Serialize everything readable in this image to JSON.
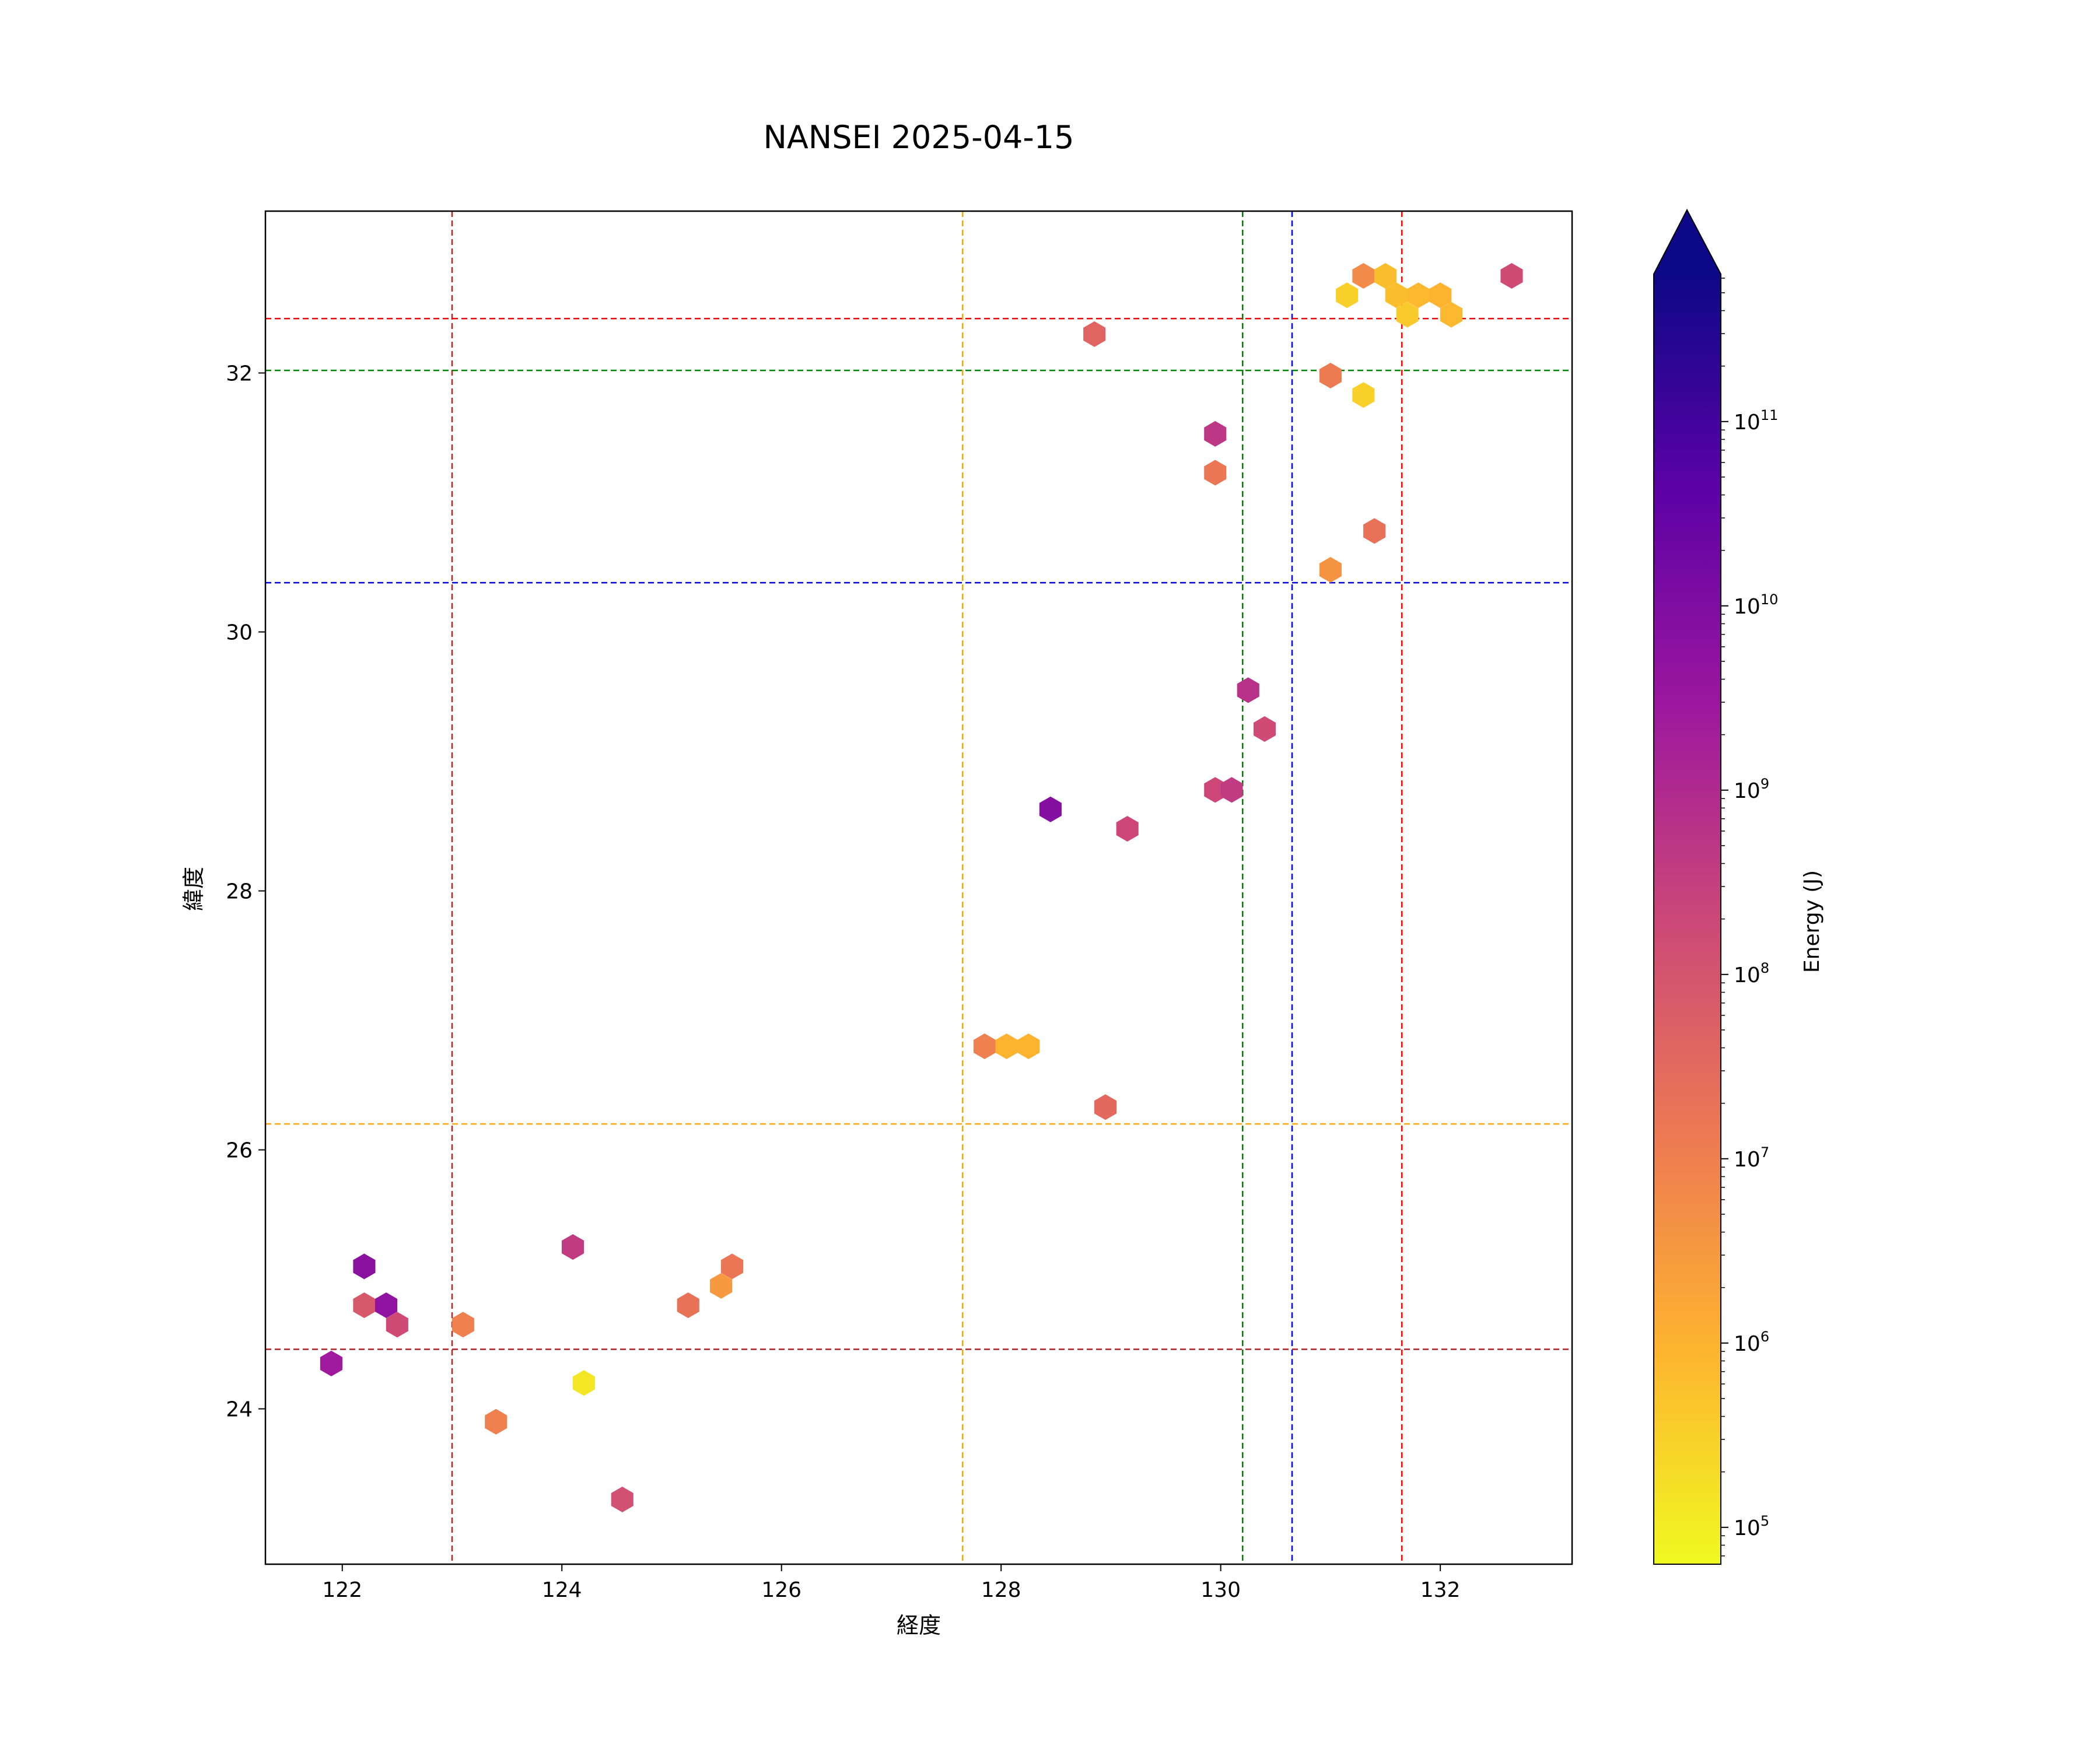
{
  "chart_data": {
    "type": "scatter",
    "marker": "hexagon",
    "title": "NANSEI 2025-04-15",
    "xlabel": "経度",
    "ylabel": "緯度",
    "xlim": [
      121.3,
      133.2
    ],
    "ylim": [
      22.8,
      33.25
    ],
    "xticks": [
      122,
      124,
      126,
      128,
      130,
      132
    ],
    "yticks": [
      24,
      26,
      28,
      30,
      32
    ],
    "grid": false,
    "colorbar": {
      "label": "Energy (J)",
      "scale": "log",
      "range_log10": [
        4.8,
        11.8
      ],
      "extend": "max",
      "colormap": "plasma_r",
      "stops": [
        "#f0f921",
        "#fdb42f",
        "#ed7953",
        "#cc4778",
        "#9c179e",
        "#5c01a6",
        "#0d0887"
      ],
      "ticks": [
        {
          "exp": 5,
          "label": "10",
          "sup": "5"
        },
        {
          "exp": 6,
          "label": "10",
          "sup": "6"
        },
        {
          "exp": 7,
          "label": "10",
          "sup": "7"
        },
        {
          "exp": 8,
          "label": "10",
          "sup": "8"
        },
        {
          "exp": 9,
          "label": "10",
          "sup": "9"
        },
        {
          "exp": 10,
          "label": "10",
          "sup": "10"
        },
        {
          "exp": 11,
          "label": "10",
          "sup": "11"
        }
      ]
    },
    "reference_lines": [
      {
        "orientation": "vertical",
        "value": 123.0,
        "color": "#b22222"
      },
      {
        "orientation": "vertical",
        "value": 127.65,
        "color": "#ffa500"
      },
      {
        "orientation": "vertical",
        "value": 130.2,
        "color": "#008000"
      },
      {
        "orientation": "vertical",
        "value": 130.65,
        "color": "#0000ff"
      },
      {
        "orientation": "vertical",
        "value": 131.65,
        "color": "#ff0000"
      },
      {
        "orientation": "horizontal",
        "value": 32.42,
        "color": "#ff0000"
      },
      {
        "orientation": "horizontal",
        "value": 32.02,
        "color": "#008000"
      },
      {
        "orientation": "horizontal",
        "value": 30.38,
        "color": "#0000ff"
      },
      {
        "orientation": "horizontal",
        "value": 26.2,
        "color": "#ffa500"
      },
      {
        "orientation": "horizontal",
        "value": 24.46,
        "color": "#b22222"
      }
    ],
    "points": [
      {
        "x": 121.9,
        "y": 24.35,
        "log_e": 9.4
      },
      {
        "x": 122.2,
        "y": 25.1,
        "log_e": 9.8
      },
      {
        "x": 122.2,
        "y": 24.8,
        "log_e": 7.9
      },
      {
        "x": 122.4,
        "y": 24.8,
        "log_e": 9.7
      },
      {
        "x": 122.5,
        "y": 24.65,
        "log_e": 8.2
      },
      {
        "x": 123.1,
        "y": 24.65,
        "log_e": 7.0
      },
      {
        "x": 123.4,
        "y": 23.9,
        "log_e": 7.0
      },
      {
        "x": 124.1,
        "y": 25.25,
        "log_e": 8.6
      },
      {
        "x": 124.2,
        "y": 24.2,
        "log_e": 5.1
      },
      {
        "x": 124.55,
        "y": 23.3,
        "log_e": 8.1
      },
      {
        "x": 125.15,
        "y": 24.8,
        "log_e": 7.3
      },
      {
        "x": 125.45,
        "y": 24.95,
        "log_e": 6.5
      },
      {
        "x": 125.55,
        "y": 25.1,
        "log_e": 7.2
      },
      {
        "x": 127.85,
        "y": 26.8,
        "log_e": 7.0
      },
      {
        "x": 128.05,
        "y": 26.8,
        "log_e": 6.0
      },
      {
        "x": 128.25,
        "y": 26.8,
        "log_e": 6.0
      },
      {
        "x": 128.45,
        "y": 28.63,
        "log_e": 9.9
      },
      {
        "x": 128.85,
        "y": 32.3,
        "log_e": 7.6
      },
      {
        "x": 128.95,
        "y": 26.33,
        "log_e": 7.5
      },
      {
        "x": 129.15,
        "y": 28.48,
        "log_e": 8.3
      },
      {
        "x": 129.95,
        "y": 31.53,
        "log_e": 8.7
      },
      {
        "x": 129.95,
        "y": 31.23,
        "log_e": 7.2
      },
      {
        "x": 129.95,
        "y": 28.78,
        "log_e": 8.3
      },
      {
        "x": 130.1,
        "y": 28.78,
        "log_e": 8.6
      },
      {
        "x": 130.25,
        "y": 29.55,
        "log_e": 8.8
      },
      {
        "x": 130.4,
        "y": 29.25,
        "log_e": 8.2
      },
      {
        "x": 131.0,
        "y": 31.98,
        "log_e": 7.1
      },
      {
        "x": 131.0,
        "y": 30.48,
        "log_e": 6.6
      },
      {
        "x": 131.15,
        "y": 32.6,
        "log_e": 5.5
      },
      {
        "x": 131.3,
        "y": 32.75,
        "log_e": 6.8
      },
      {
        "x": 131.3,
        "y": 31.83,
        "log_e": 5.5
      },
      {
        "x": 131.4,
        "y": 30.78,
        "log_e": 7.3
      },
      {
        "x": 131.5,
        "y": 32.75,
        "log_e": 5.8
      },
      {
        "x": 131.6,
        "y": 32.6,
        "log_e": 5.8
      },
      {
        "x": 131.7,
        "y": 32.45,
        "log_e": 5.6
      },
      {
        "x": 131.8,
        "y": 32.6,
        "log_e": 5.9
      },
      {
        "x": 132.0,
        "y": 32.6,
        "log_e": 6.0
      },
      {
        "x": 132.1,
        "y": 32.45,
        "log_e": 5.9
      },
      {
        "x": 132.65,
        "y": 32.75,
        "log_e": 8.2
      }
    ]
  }
}
